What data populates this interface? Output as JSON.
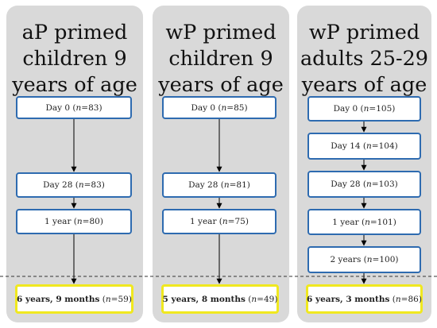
{
  "panels": [
    {
      "title": [
        "aP primed",
        "children 9",
        "years of age"
      ],
      "boxes": [
        {
          "label": "Day 0 (",
          "n": "83"
        },
        {
          "label": "Day 28 (",
          "n": "83"
        },
        {
          "label": "1 year (",
          "n": "80"
        }
      ],
      "final": {
        "label": "6 years, 9 months",
        "n": "59",
        "close": " )"
      }
    },
    {
      "title": [
        "wP primed",
        "children 9",
        "years of age"
      ],
      "boxes": [
        {
          "label": "Day 0 (",
          "n": "85"
        },
        {
          "label": "Day 28 (",
          "n": "81"
        },
        {
          "label": "1 year (",
          "n": "75"
        }
      ],
      "final": {
        "label": "5 years, 8 months",
        "n": "49",
        "close": ")"
      }
    },
    {
      "title": [
        "wP primed",
        "adults 25-29",
        "years of age"
      ],
      "boxes": [
        {
          "label": "Day 0 (",
          "n": "105"
        },
        {
          "label": "Day 14 (",
          "n": "104"
        },
        {
          "label": "Day 28 (",
          "n": "103"
        },
        {
          "label": "1 year (",
          "n": "101"
        },
        {
          "label": "2 years (",
          "n": "100"
        }
      ],
      "final": {
        "label": "6 years, 3 months",
        "n": "86",
        "close": ")"
      }
    }
  ],
  "n_symbol": "n",
  "eq": " = ",
  "close": ")",
  "colors": {
    "panel": "#d9d9d9",
    "box_border": "#2e6bb0",
    "final_border": "#f0e81f"
  }
}
